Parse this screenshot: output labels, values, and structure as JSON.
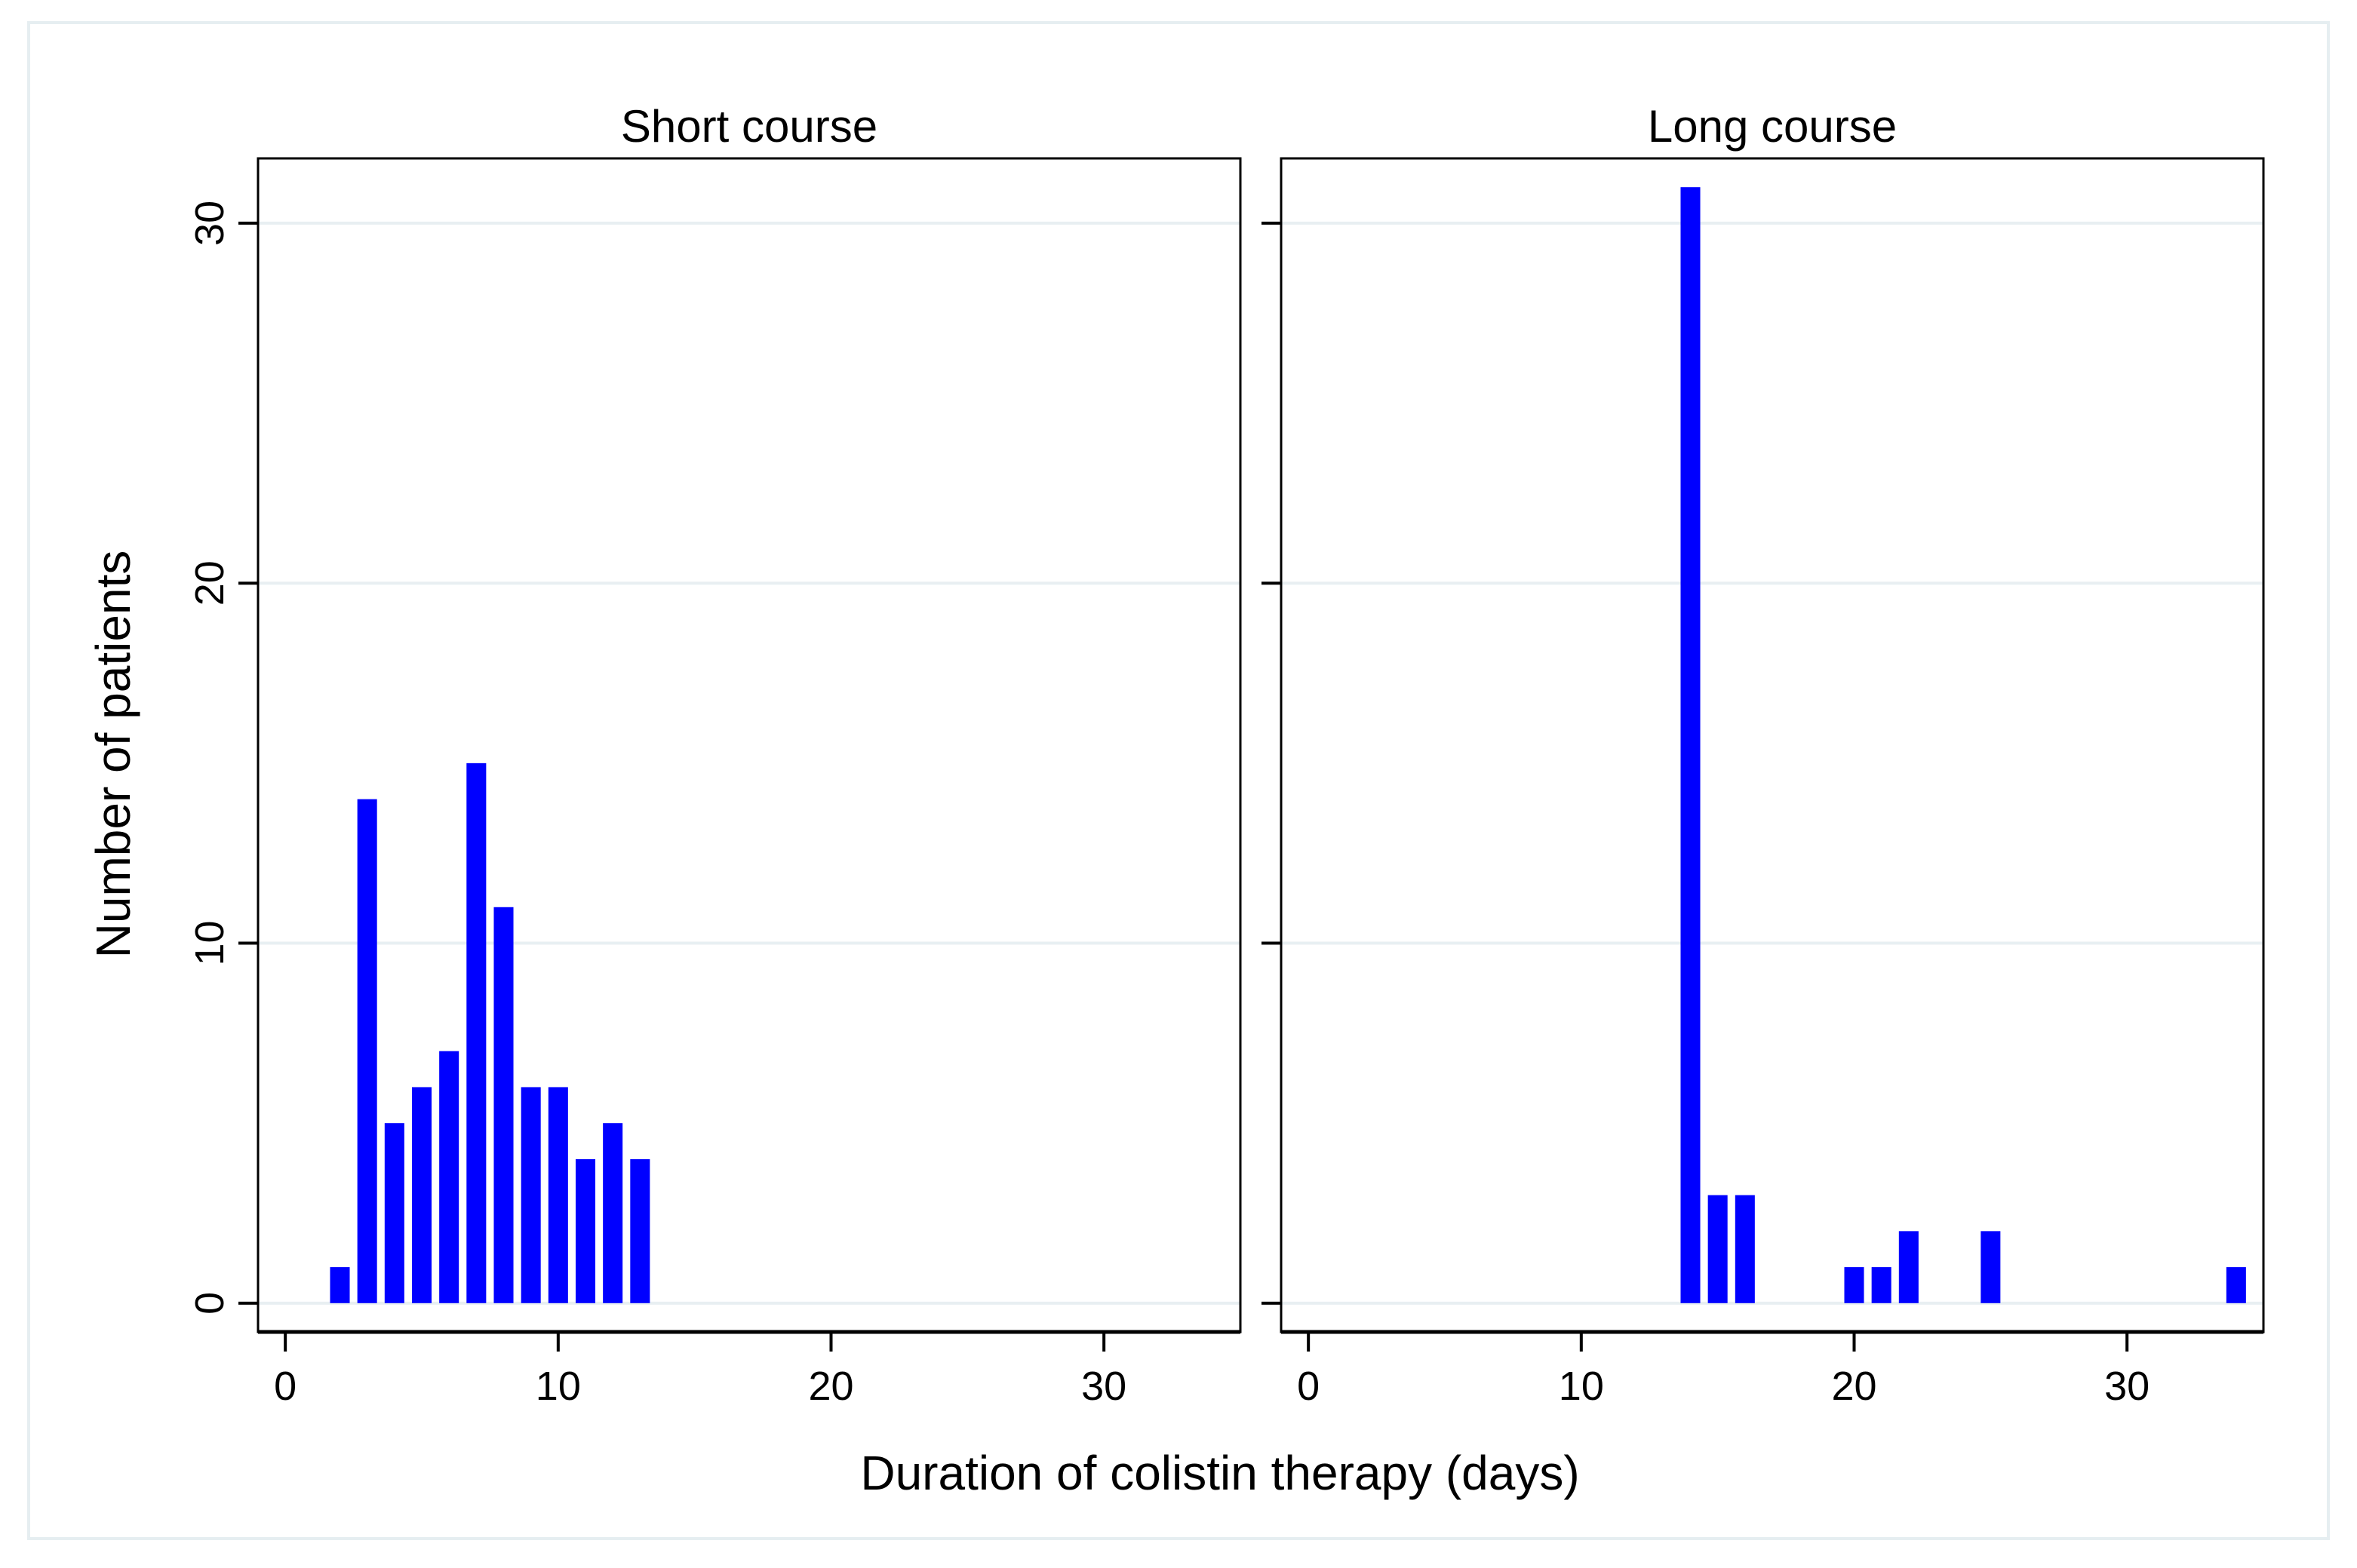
{
  "chart_data": {
    "type": "bar",
    "subtype": "histogram-small-multiples",
    "xlabel": "Duration of colistin therapy (days)",
    "ylabel": "Number of patients",
    "xlim": [
      -1,
      35
    ],
    "ylim": [
      -0.8,
      31.8
    ],
    "xticks": [
      "0",
      "10",
      "20",
      "30"
    ],
    "xtick_values": [
      0,
      10,
      20,
      30
    ],
    "yticks": [
      "0",
      "10",
      "20",
      "30"
    ],
    "ytick_values": [
      0,
      10,
      20,
      30
    ],
    "grid": true,
    "bar_color": "#0000ff",
    "panels": [
      {
        "title": "Short course",
        "x": [
          2,
          3,
          4,
          5,
          6,
          7,
          8,
          9,
          10,
          11,
          12,
          13
        ],
        "values": [
          1,
          14,
          5,
          6,
          7,
          15,
          11,
          6,
          6,
          4,
          5,
          4
        ]
      },
      {
        "title": "Long course",
        "x": [
          14,
          15,
          16,
          20,
          21,
          22,
          25,
          34
        ],
        "values": [
          31,
          3,
          3,
          1,
          1,
          2,
          2,
          1
        ]
      }
    ]
  }
}
